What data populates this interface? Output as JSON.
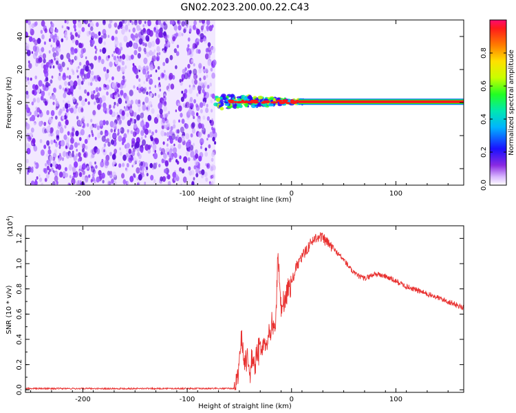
{
  "chart_data": [
    {
      "type": "heatmap",
      "title": "GN02.2023.200.00.22.C43",
      "xlabel": "Height of straight line (km)",
      "ylabel": "Frequency (Hz)",
      "xlim": [
        -255,
        165
      ],
      "ylim": [
        -50,
        50
      ],
      "xticks": [
        -200,
        -100,
        0,
        100
      ],
      "yticks": [
        -40,
        -20,
        0,
        20,
        40
      ],
      "noise_region_x": [
        -255,
        -73
      ],
      "transition_region_x": [
        -73,
        12
      ],
      "line_region_x": [
        12,
        165
      ],
      "line_frequency": 0.5,
      "colorbar": {
        "label": "Normalized spectral amplitude",
        "range": [
          0,
          1
        ],
        "ticks": [
          "0.0",
          "0.2",
          "0.4",
          "0.6",
          "0.8"
        ]
      }
    },
    {
      "type": "line",
      "xlabel": "Height of straight line (km)",
      "ylabel": "SNR (10 * v/v)",
      "exponent_label": "(x10",
      "exponent_power": "4",
      "exponent_close": ")",
      "xlim": [
        -255,
        165
      ],
      "ylim": [
        -0.02,
        1.3
      ],
      "xticks": [
        -200,
        -100,
        0,
        100
      ],
      "yticks": [
        "0.0",
        "0.2",
        "0.4",
        "0.6",
        "0.8",
        "1.0",
        "1.2"
      ],
      "color": "#e8302f",
      "series": [
        {
          "name": "SNR",
          "x": [
            -255,
            -150,
            -55,
            -52,
            -50,
            -48,
            -45,
            -42,
            -40,
            -38,
            -35,
            -30,
            -25,
            -20,
            -15,
            -13,
            -10,
            -5,
            0,
            5,
            10,
            15,
            20,
            25,
            30,
            40,
            50,
            60,
            70,
            80,
            90,
            100,
            110,
            120,
            130,
            140,
            150,
            165
          ],
          "y": [
            0.01,
            0.01,
            0.01,
            0.12,
            0.25,
            0.45,
            0.2,
            0.3,
            0.1,
            0.28,
            0.2,
            0.35,
            0.38,
            0.48,
            0.55,
            1.1,
            0.62,
            0.75,
            0.85,
            0.98,
            1.05,
            1.12,
            1.18,
            1.22,
            1.2,
            1.12,
            1.03,
            0.92,
            0.88,
            0.92,
            0.9,
            0.86,
            0.82,
            0.79,
            0.76,
            0.73,
            0.7,
            0.65
          ]
        }
      ]
    }
  ]
}
